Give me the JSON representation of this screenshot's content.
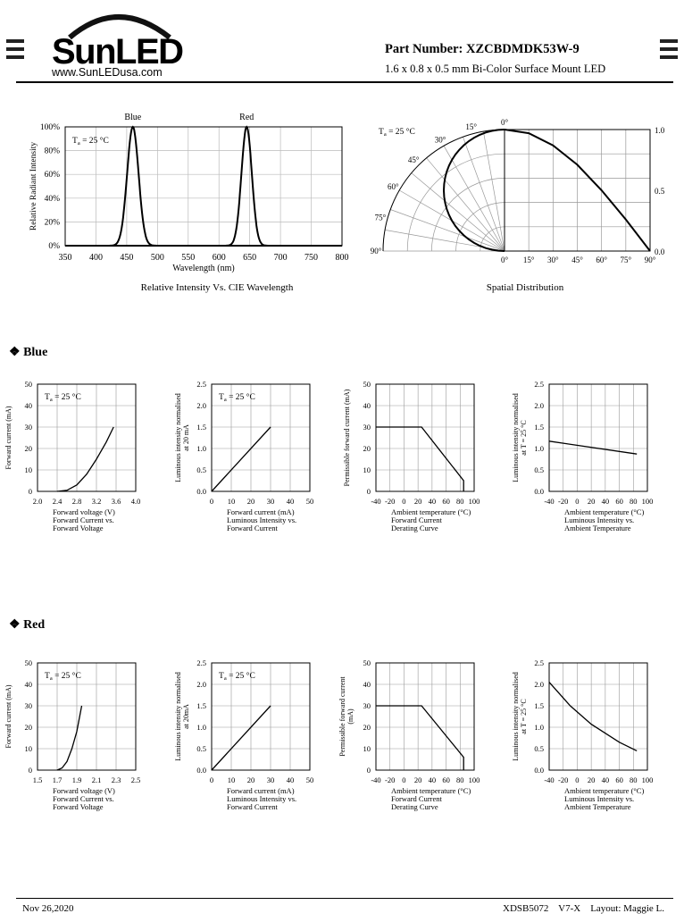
{
  "brand": {
    "name": "SunLED",
    "url": "www.SunLEDusa.com"
  },
  "header": {
    "part_number": "Part Number: XZCBDMDK53W-9",
    "description": "1.6 x 0.8 x 0.5 mm Bi-Color Surface Mount LED"
  },
  "spectrum": {
    "caption": "Relative Intensity Vs. CIE Wavelength",
    "xlabel": "Wavelength (nm)",
    "ylabel": "Relative Radiant Intensity",
    "temp": "Ta = 25 °C",
    "peak_labels": [
      "Blue",
      "Red"
    ],
    "xticks": [
      "350",
      "400",
      "450",
      "500",
      "550",
      "600",
      "650",
      "700",
      "750",
      "800"
    ],
    "yticks": [
      "0%",
      "20%",
      "40%",
      "60%",
      "80%",
      "100%"
    ]
  },
  "spatial": {
    "caption": "Spatial Distribution",
    "temp": "Ta = 25 °C",
    "angle_labels": [
      "0°",
      "15°",
      "30°",
      "45°",
      "60°",
      "75°",
      "90°"
    ],
    "xticks": [
      "0°",
      "15°",
      "30°",
      "45°",
      "60°",
      "75°",
      "90°"
    ],
    "right_ticks": [
      "1.0",
      "0.5",
      "0.0"
    ]
  },
  "sections": {
    "blue": "Blue",
    "red": "Red"
  },
  "blue_charts": [
    {
      "ylabel": "Forward current (mA)",
      "caption": [
        "Forward voltage (V)",
        "Forward Current vs.",
        "Forward Voltage"
      ],
      "temp": "Ta = 25 °C",
      "xticks": [
        "2.0",
        "2.4",
        "2.8",
        "3.2",
        "3.6",
        "4.0"
      ],
      "yticks": [
        "0",
        "10",
        "20",
        "30",
        "40",
        "50"
      ]
    },
    {
      "ylabel": "Luminous intensity normalised|at 20 mA",
      "caption": [
        "Forward current (mA)",
        "Luminous Intensity vs.",
        "Forward Current"
      ],
      "temp": "Ta = 25 °C",
      "xticks": [
        "0",
        "10",
        "20",
        "30",
        "40",
        "50"
      ],
      "yticks": [
        "0.0",
        "0.5",
        "1.0",
        "1.5",
        "2.0",
        "2.5"
      ]
    },
    {
      "ylabel": "Permissible forward current (mA)",
      "caption": [
        "Ambient temperature (°C)",
        "Forward Current",
        "Derating  Curve"
      ],
      "temp": "",
      "xticks": [
        "-40",
        "-20",
        "0",
        "20",
        "40",
        "60",
        "80",
        "100"
      ],
      "yticks": [
        "0",
        "10",
        "20",
        "30",
        "40",
        "50"
      ]
    },
    {
      "ylabel": "Luminous intensity normalised|at T = 25 °C",
      "caption": [
        "Ambient temperature (°C)",
        "Luminous Intensity vs.",
        "Ambient Temperature"
      ],
      "temp": "",
      "xticks": [
        "-40",
        "-20",
        "0",
        "20",
        "40",
        "60",
        "80",
        "100"
      ],
      "yticks": [
        "0.0",
        "0.5",
        "1.0",
        "1.5",
        "2.0",
        "2.5"
      ]
    }
  ],
  "red_charts": [
    {
      "ylabel": "Forward current (mA)",
      "caption": [
        "Forward voltage (V)",
        "Forward Current vs.",
        "Forward Voltage"
      ],
      "temp": "Ta = 25 °C",
      "xticks": [
        "1.5",
        "1.7",
        "1.9",
        "2.1",
        "2.3",
        "2.5"
      ],
      "yticks": [
        "0",
        "10",
        "20",
        "30",
        "40",
        "50"
      ]
    },
    {
      "ylabel": "Luminous intensity normalised|at 20mA",
      "caption": [
        "Forward current (mA)",
        "Luminous Intensity vs.",
        "Forward Current"
      ],
      "temp": "Ta = 25 °C",
      "xticks": [
        "0",
        "10",
        "20",
        "30",
        "40",
        "50"
      ],
      "yticks": [
        "0.0",
        "0.5",
        "1.0",
        "1.5",
        "2.0",
        "2.5"
      ]
    },
    {
      "ylabel": "Permissible forward current|(mA)",
      "caption": [
        "Ambient temperature (°C)",
        "Forward Current",
        "Derating  Curve"
      ],
      "temp": "",
      "xticks": [
        "-40",
        "-20",
        "0",
        "20",
        "40",
        "60",
        "80",
        "100"
      ],
      "yticks": [
        "0",
        "10",
        "20",
        "30",
        "40",
        "50"
      ]
    },
    {
      "ylabel": "Luminous intensity normalised|at T = 25 °C",
      "caption": [
        "Ambient temperature (°C)",
        "Luminous Intensity vs.",
        "Ambient Temperature"
      ],
      "temp": "",
      "xticks": [
        "-40",
        "-20",
        "0",
        "20",
        "40",
        "60",
        "80",
        "100"
      ],
      "yticks": [
        "0.0",
        "0.5",
        "1.0",
        "1.5",
        "2.0",
        "2.5"
      ]
    }
  ],
  "footer": {
    "date": "Nov 26,2020",
    "doc": "XDSB5072    V7-X    Layout: Maggie L."
  },
  "chart_data": [
    {
      "type": "line",
      "title": "Relative Intensity Vs. CIE Wavelength",
      "xlabel": "Wavelength (nm)",
      "ylabel": "Relative Radiant Intensity",
      "xlim": [
        350,
        800
      ],
      "ylim": [
        0,
        100
      ],
      "series": [
        {
          "name": "Blue",
          "peak_x": 460,
          "fwhm": 22
        },
        {
          "name": "Red",
          "peak_x": 645,
          "fwhm": 20
        }
      ]
    },
    {
      "type": "line",
      "title": "Spatial Distribution",
      "xlim": [
        0,
        90
      ],
      "ylim": [
        0,
        1
      ],
      "series": [
        {
          "x": [
            0,
            15,
            30,
            45,
            60,
            75,
            90
          ],
          "values": [
            1.0,
            0.97,
            0.87,
            0.71,
            0.5,
            0.26,
            0.0
          ]
        }
      ]
    },
    {
      "type": "line",
      "title": "Forward Current vs. Forward Voltage",
      "xlabel": "Forward voltage (V)",
      "ylabel": "Forward current (mA)",
      "xlim": [
        2.0,
        4.0
      ],
      "ylim": [
        0,
        50
      ],
      "series": [
        {
          "name": "Blue",
          "x": [
            2.4,
            2.6,
            2.8,
            3.0,
            3.2,
            3.4,
            3.55
          ],
          "values": [
            0,
            0.5,
            3,
            8,
            15,
            23,
            30
          ]
        }
      ]
    },
    {
      "type": "line",
      "title": "Luminous Intensity vs. Forward Current",
      "xlabel": "Forward current (mA)",
      "ylim": [
        0,
        2.5
      ],
      "xlim": [
        0,
        50
      ],
      "series": [
        {
          "name": "Blue",
          "x": [
            0,
            30
          ],
          "values": [
            0,
            1.5
          ]
        }
      ]
    },
    {
      "type": "line",
      "title": "Forward Current Derating Curve",
      "xlabel": "Ambient temperature (°C)",
      "ylabel": "Permissible forward current (mA)",
      "xlim": [
        -40,
        100
      ],
      "ylim": [
        0,
        50
      ],
      "series": [
        {
          "name": "Blue",
          "x": [
            -40,
            25,
            85,
            85
          ],
          "values": [
            30,
            30,
            5,
            0
          ]
        }
      ]
    },
    {
      "type": "line",
      "title": "Luminous Intensity vs. Ambient Temperature",
      "xlabel": "Ambient temperature (°C)",
      "xlim": [
        -40,
        100
      ],
      "ylim": [
        0,
        2.5
      ],
      "series": [
        {
          "name": "Blue",
          "x": [
            -40,
            85
          ],
          "values": [
            1.17,
            0.87
          ]
        }
      ]
    },
    {
      "type": "line",
      "title": "Forward Current vs. Forward Voltage",
      "xlabel": "Forward voltage (V)",
      "ylabel": "Forward current (mA)",
      "xlim": [
        1.5,
        2.5
      ],
      "ylim": [
        0,
        50
      ],
      "series": [
        {
          "name": "Red",
          "x": [
            1.7,
            1.75,
            1.8,
            1.85,
            1.9,
            1.95
          ],
          "values": [
            0,
            1,
            4,
            10,
            18,
            30
          ]
        }
      ]
    },
    {
      "type": "line",
      "title": "Luminous Intensity vs. Forward Current",
      "xlabel": "Forward current (mA)",
      "xlim": [
        0,
        50
      ],
      "ylim": [
        0,
        2.5
      ],
      "series": [
        {
          "name": "Red",
          "x": [
            0,
            30
          ],
          "values": [
            0,
            1.5
          ]
        }
      ]
    },
    {
      "type": "line",
      "title": "Forward Current Derating Curve",
      "xlabel": "Ambient temperature (°C)",
      "xlim": [
        -40,
        100
      ],
      "ylim": [
        0,
        50
      ],
      "series": [
        {
          "name": "Red",
          "x": [
            -40,
            25,
            85,
            85
          ],
          "values": [
            30,
            30,
            6,
            0
          ]
        }
      ]
    },
    {
      "type": "line",
      "title": "Luminous Intensity vs. Ambient Temperature",
      "xlabel": "Ambient temperature (°C)",
      "xlim": [
        -40,
        100
      ],
      "ylim": [
        0,
        2.5
      ],
      "series": [
        {
          "name": "Red",
          "x": [
            -40,
            -10,
            20,
            60,
            85
          ],
          "values": [
            2.05,
            1.5,
            1.07,
            0.65,
            0.45
          ]
        }
      ]
    }
  ]
}
